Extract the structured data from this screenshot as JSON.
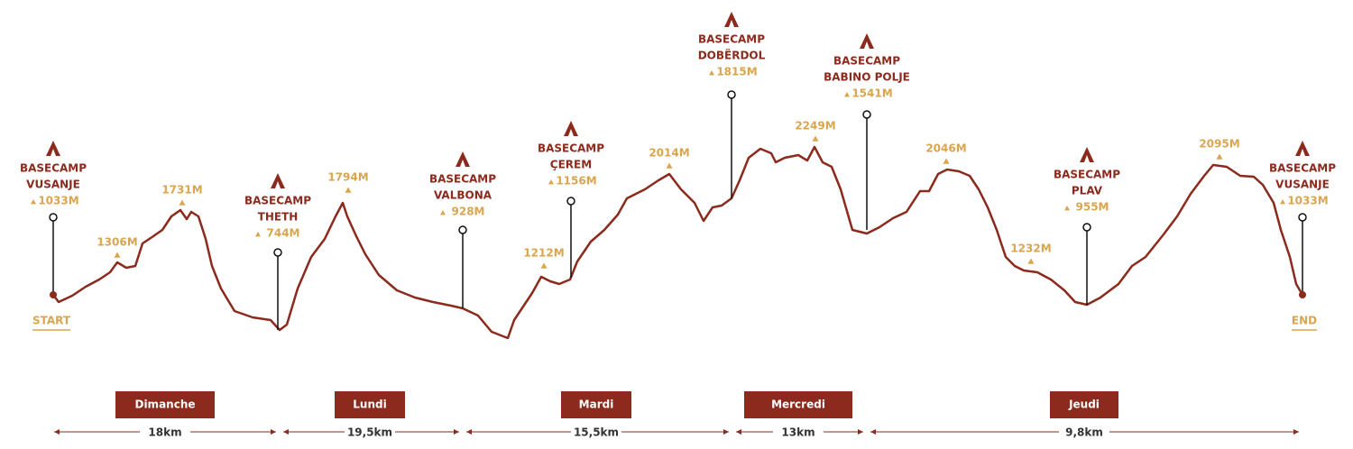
{
  "trek": {
    "start": "START",
    "end": "END",
    "camps": [
      {
        "label": [
          "BASECAMP",
          "VUSANJE"
        ],
        "elevation": "1033M"
      },
      {
        "label": [
          "BASECAMP",
          "THETH"
        ],
        "elevation": "744M"
      },
      {
        "label": [
          "BASECAMP",
          "VALBONA"
        ],
        "elevation": "928M"
      },
      {
        "label": [
          "BASECAMP",
          "ÇEREM"
        ],
        "elevation": "1156M"
      },
      {
        "label": [
          "BASECAMP",
          "DOBËRDOL"
        ],
        "elevation": "1815M"
      },
      {
        "label": [
          "BASECAMP",
          "BABINO POLJE"
        ],
        "elevation": "1541M"
      },
      {
        "label": [
          "BASECAMP",
          "PLAV"
        ],
        "elevation": "955M"
      },
      {
        "label": [
          "BASECAMP",
          "VUSANJE"
        ],
        "elevation": "1033M"
      }
    ],
    "peaks": [
      "1306M",
      "1731M",
      "1794M",
      "1212M",
      "2014M",
      "2249M",
      "2046M",
      "1232M",
      "2095M"
    ],
    "days": [
      {
        "name": "Dimanche",
        "distance": "18km"
      },
      {
        "name": "Lundi",
        "distance": "19,5km"
      },
      {
        "name": "Mardi",
        "distance": "15,5km"
      },
      {
        "name": "Mercredi",
        "distance": "13km"
      },
      {
        "name": "Jeudi",
        "distance": "9,8km"
      }
    ]
  }
}
